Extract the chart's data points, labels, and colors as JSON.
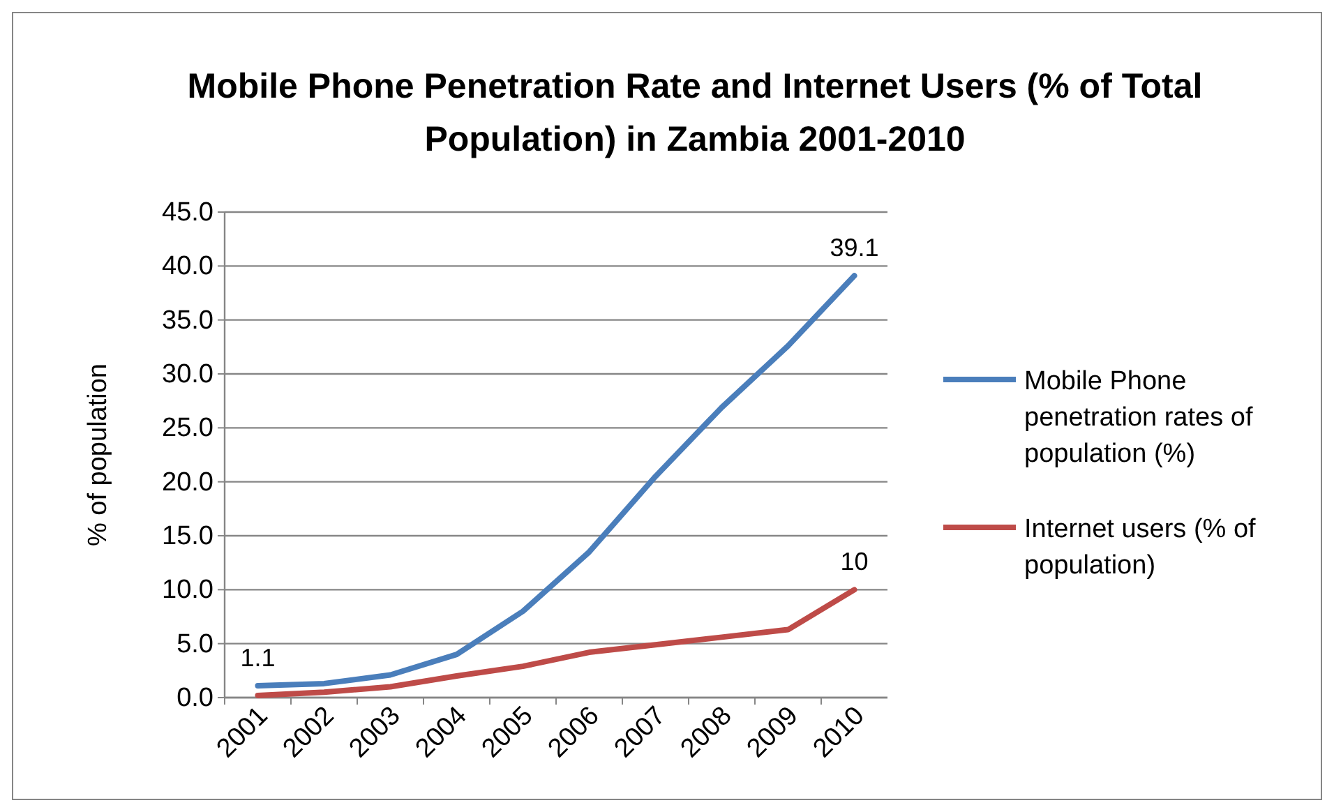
{
  "chart_data": {
    "type": "line",
    "title": "Mobile Phone Penetration Rate and Internet Users (% of Total Population) in Zambia 2001-2010",
    "ylabel": "% of population",
    "categories": [
      "2001",
      "2002",
      "2003",
      "2004",
      "2005",
      "2006",
      "2007",
      "2008",
      "2009",
      "2010"
    ],
    "series": [
      {
        "name": "Mobile Phone penetration rates of population (%)",
        "color": "#4a7ebb",
        "values": [
          1.1,
          1.3,
          2.1,
          4.0,
          8.0,
          13.5,
          20.5,
          26.9,
          32.6,
          39.1
        ],
        "value_labels": [
          "1.1",
          null,
          null,
          null,
          null,
          null,
          null,
          null,
          null,
          "39.1"
        ]
      },
      {
        "name": "Internet users (% of population)",
        "color": "#be4b48",
        "values": [
          0.2,
          0.5,
          1.0,
          2.0,
          2.9,
          4.2,
          4.9,
          5.6,
          6.3,
          10
        ],
        "value_labels": [
          null,
          null,
          null,
          null,
          null,
          null,
          null,
          null,
          null,
          "10"
        ]
      }
    ],
    "ylim": [
      0,
      45
    ],
    "yticks": [
      {
        "value": 0,
        "label": "0.0"
      },
      {
        "value": 5,
        "label": "5.0"
      },
      {
        "value": 10,
        "label": "10.0"
      },
      {
        "value": 15,
        "label": "15.0"
      },
      {
        "value": 20,
        "label": "20.0"
      },
      {
        "value": 25,
        "label": "25.0"
      },
      {
        "value": 30,
        "label": "30.0"
      },
      {
        "value": 35,
        "label": "35.0"
      },
      {
        "value": 40,
        "label": "40.0"
      },
      {
        "value": 45,
        "label": "45.0"
      }
    ],
    "grid": "y",
    "legend": "right",
    "marker": "none",
    "line_style": "solid"
  }
}
